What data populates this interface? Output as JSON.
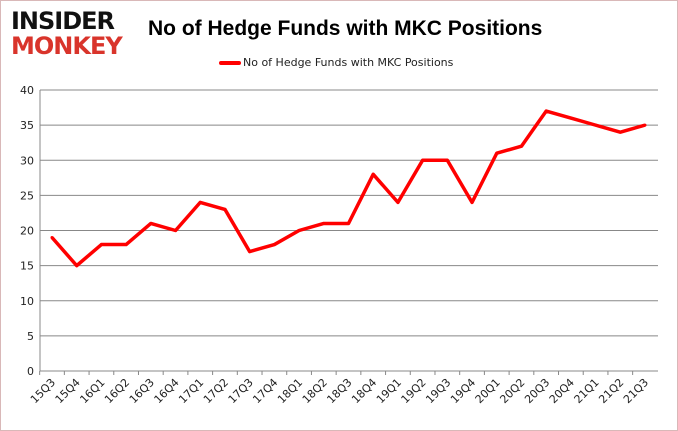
{
  "logo": {
    "line1": "INSIDER",
    "line2": "MONKEY"
  },
  "chart_data": {
    "type": "line",
    "title": "No of Hedge Funds with MKC Positions",
    "categories": [
      "15Q3",
      "15Q4",
      "16Q1",
      "16Q2",
      "16Q3",
      "16Q4",
      "17Q1",
      "17Q2",
      "17Q3",
      "17Q4",
      "18Q1",
      "18Q2",
      "18Q3",
      "18Q4",
      "19Q1",
      "19Q2",
      "19Q3",
      "19Q4",
      "20Q1",
      "20Q2",
      "20Q3",
      "20Q4",
      "21Q1",
      "21Q2",
      "21Q3"
    ],
    "series": [
      {
        "name": "No of Hedge Funds with MKC Positions",
        "color": "#ff0000",
        "values": [
          19,
          15,
          18,
          18,
          21,
          20,
          24,
          23,
          17,
          18,
          20,
          21,
          21,
          28,
          24,
          30,
          30,
          24,
          31,
          32,
          37,
          36,
          35,
          34,
          35
        ]
      }
    ],
    "ylim": [
      0,
      40
    ],
    "yticks": [
      0,
      5,
      10,
      15,
      20,
      25,
      30,
      35,
      40
    ],
    "grid": true,
    "legend_position": "top"
  }
}
